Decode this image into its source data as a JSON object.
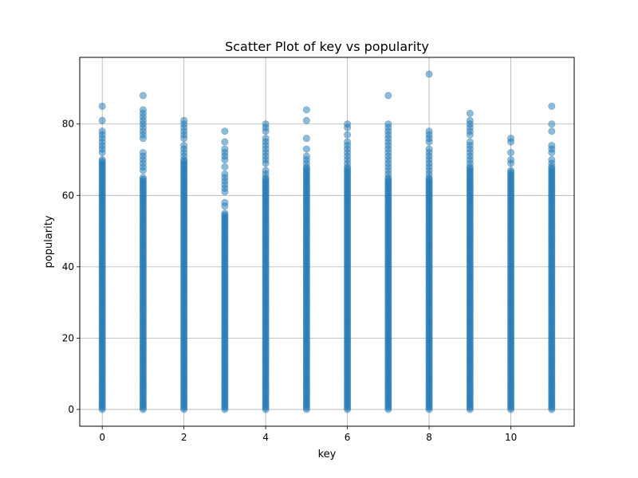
{
  "chart_data": {
    "type": "scatter",
    "title": "Scatter Plot of key vs popularity",
    "xlabel": "key",
    "ylabel": "popularity",
    "xlim": [
      -0.55,
      11.55
    ],
    "ylim": [
      -4.7,
      98.7
    ],
    "xticks": [
      0,
      2,
      4,
      6,
      8,
      10
    ],
    "yticks": [
      0,
      20,
      40,
      60,
      80
    ],
    "grid": true,
    "marker_color": "#1f77b4",
    "marker_alpha": 0.5,
    "series": [
      {
        "key": 0,
        "dense_max": 70,
        "extra": [
          72,
          73,
          74,
          75,
          76,
          77,
          78,
          81,
          85
        ]
      },
      {
        "key": 1,
        "dense_max": 65,
        "extra": [
          67,
          68,
          69,
          70,
          71,
          72,
          76,
          77,
          78,
          79,
          80,
          81,
          82,
          83,
          84,
          88
        ]
      },
      {
        "key": 2,
        "dense_max": 70,
        "extra": [
          71,
          72,
          73,
          74,
          76,
          77,
          78,
          79,
          80,
          81
        ]
      },
      {
        "key": 3,
        "dense_max": 55,
        "extra": [
          57,
          58,
          61,
          62,
          63,
          64,
          65,
          66,
          68,
          70,
          71,
          72,
          73,
          75,
          78
        ]
      },
      {
        "key": 4,
        "dense_max": 65,
        "extra": [
          66,
          67,
          69,
          70,
          71,
          72,
          73,
          74,
          75,
          76,
          78,
          79,
          80
        ]
      },
      {
        "key": 5,
        "dense_max": 68,
        "extra": [
          69,
          70,
          71,
          73,
          76,
          81,
          84
        ]
      },
      {
        "key": 6,
        "dense_max": 68,
        "extra": [
          69,
          70,
          71,
          72,
          73,
          74,
          75,
          77,
          79,
          80
        ]
      },
      {
        "key": 7,
        "dense_max": 65,
        "extra": [
          66,
          67,
          68,
          69,
          70,
          71,
          72,
          73,
          74,
          75,
          76,
          77,
          78,
          79,
          80,
          88
        ]
      },
      {
        "key": 8,
        "dense_max": 65,
        "extra": [
          66,
          67,
          68,
          69,
          70,
          71,
          72,
          73,
          75,
          76,
          77,
          78,
          94
        ]
      },
      {
        "key": 9,
        "dense_max": 68,
        "extra": [
          69,
          70,
          71,
          72,
          73,
          74,
          75,
          77,
          78,
          79,
          80,
          81,
          83
        ]
      },
      {
        "key": 10,
        "dense_max": 67,
        "extra": [
          69,
          70,
          72,
          75,
          76
        ]
      },
      {
        "key": 11,
        "dense_max": 68,
        "extra": [
          69,
          70,
          72,
          73,
          74,
          78,
          80,
          85
        ]
      }
    ]
  }
}
